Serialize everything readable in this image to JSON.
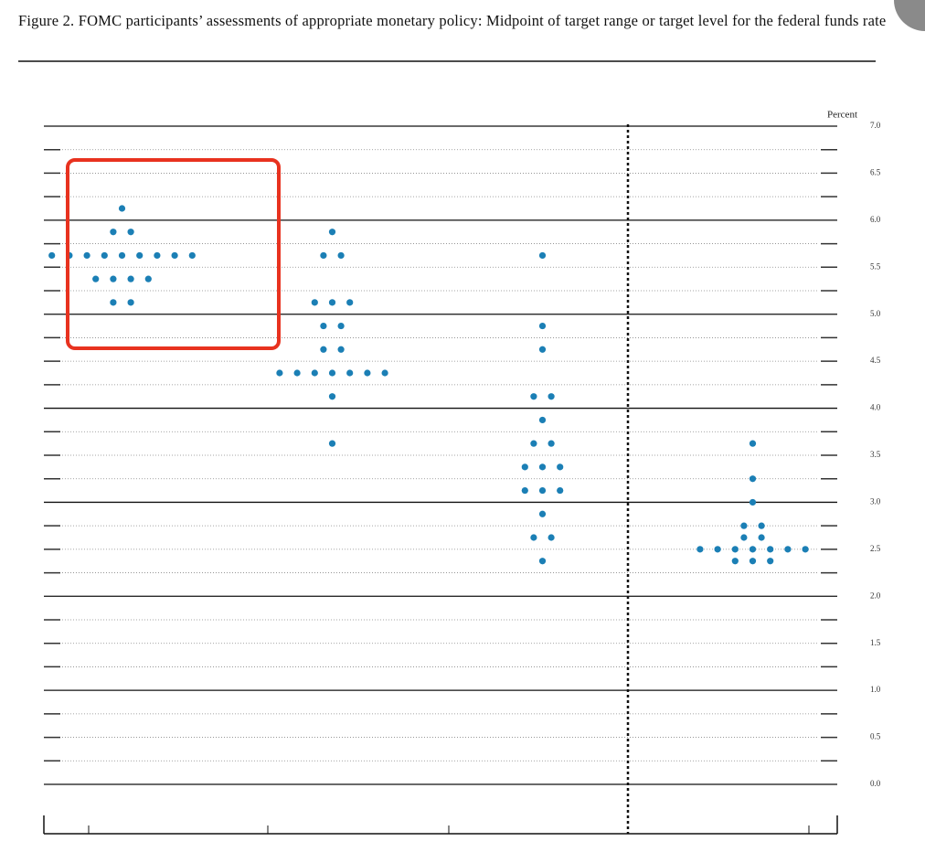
{
  "chart_data": {
    "type": "dot",
    "title": "Figure 2.  FOMC participants’ assessments of appropriate monetary policy:  Midpoint of target range or target level for the federal funds rate",
    "y_label": "Percent",
    "color": "#1b7fb5",
    "categories": [
      null,
      null,
      null,
      null
    ],
    "dots": [
      [
        {
          "y": 6.125,
          "count": 1
        },
        {
          "y": 5.875,
          "count": 2
        },
        {
          "y": 5.625,
          "count": 9
        },
        {
          "y": 5.375,
          "count": 4
        },
        {
          "y": 5.125,
          "count": 2
        }
      ],
      [
        {
          "y": 5.875,
          "count": 1
        },
        {
          "y": 5.625,
          "count": 2
        },
        {
          "y": 5.125,
          "count": 3
        },
        {
          "y": 4.875,
          "count": 2
        },
        {
          "y": 4.625,
          "count": 2
        },
        {
          "y": 4.375,
          "count": 7
        },
        {
          "y": 4.125,
          "count": 1
        },
        {
          "y": 3.625,
          "count": 1
        }
      ],
      [
        {
          "y": 5.625,
          "count": 1
        },
        {
          "y": 4.875,
          "count": 1
        },
        {
          "y": 4.625,
          "count": 1
        },
        {
          "y": 4.125,
          "count": 2
        },
        {
          "y": 3.875,
          "count": 1
        },
        {
          "y": 3.625,
          "count": 2
        },
        {
          "y": 3.375,
          "count": 3
        },
        {
          "y": 3.125,
          "count": 3
        },
        {
          "y": 2.875,
          "count": 1
        },
        {
          "y": 2.625,
          "count": 2
        },
        {
          "y": 2.375,
          "count": 1
        }
      ],
      [
        {
          "y": 3.625,
          "count": 1
        },
        {
          "y": 3.25,
          "count": 1
        },
        {
          "y": 3.0,
          "count": 1
        },
        {
          "y": 2.75,
          "count": 2
        },
        {
          "y": 2.625,
          "count": 2
        },
        {
          "y": 2.5,
          "count": 7
        },
        {
          "y": 2.375,
          "count": 3
        }
      ]
    ],
    "ylim": [
      0,
      7
    ],
    "yticks": [
      {
        "value": 0,
        "label": "0.0"
      },
      0.5,
      {
        "value": 1,
        "label": "1.0"
      },
      1.5,
      {
        "value": 2,
        "label": "2.0"
      },
      2.5,
      {
        "value": 3,
        "label": "3.0"
      },
      3.5,
      {
        "value": 4,
        "label": "4.0"
      },
      4.5,
      {
        "value": 5,
        "label": "5.0"
      },
      5.5,
      {
        "value": 6,
        "label": "6.0"
      },
      6.5,
      {
        "value": 7,
        "label": "7.0"
      }
    ],
    "grid": true
  }
}
